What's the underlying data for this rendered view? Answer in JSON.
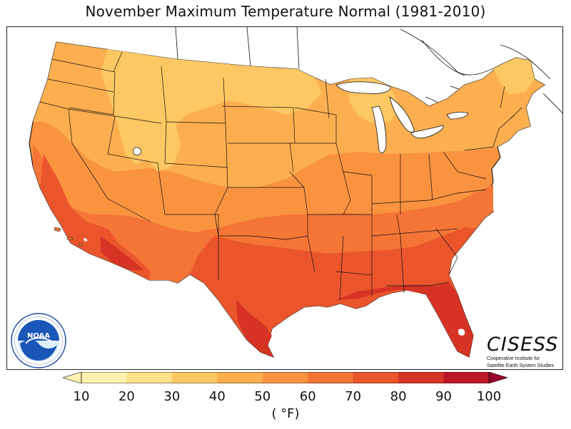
{
  "title": "November Maximum Temperature Normal (1981-2010)",
  "units": "( °F)",
  "logos": {
    "noaa": "NOAA",
    "noaa_ring_text": "NATIONAL OCEANIC AND ATMOSPHERIC ADMINISTRATION · U.S. DEPARTMENT OF COMMERCE",
    "cisess": "CISESS",
    "cisess_sub_1": "Cooperative Institute for",
    "cisess_sub_2": "Satellite Earth System Studies"
  },
  "colorbar": {
    "ticks": [
      "10",
      "20",
      "30",
      "40",
      "50",
      "60",
      "70",
      "80",
      "90",
      "100"
    ],
    "colors": [
      "#fff1b0",
      "#ffe08a",
      "#fdc863",
      "#fdaf4f",
      "#f99340",
      "#f47536",
      "#ea552b",
      "#d63325",
      "#bd1624",
      "#98002b"
    ],
    "extend": "both"
  },
  "map": {
    "region": "Contiguous United States",
    "palette": {
      "30s": "#fdc863",
      "40s": "#fdaf4f",
      "50s": "#f99340",
      "60s": "#f47536",
      "70s": "#ea552b",
      "80s": "#d63325",
      "land_outside": "#ffffff",
      "water": "#ffffff",
      "borders": "#111111"
    }
  }
}
